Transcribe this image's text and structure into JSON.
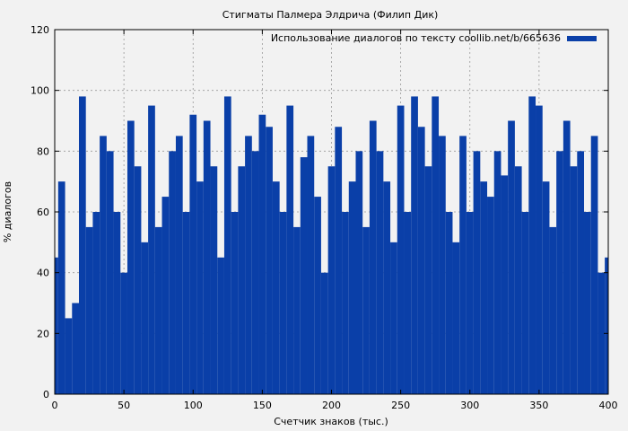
{
  "chart_data": {
    "type": "bar",
    "title": "Стигматы Палмера Элдрича (Филип Дик)",
    "xlabel": "Счетчик знаков (тыс.)",
    "ylabel": "% диалогов",
    "xlim": [
      0,
      400
    ],
    "ylim": [
      0,
      120
    ],
    "xticks": [
      "0",
      "50",
      "100",
      "150",
      "200",
      "250",
      "300",
      "350",
      "400"
    ],
    "yticks": [
      "0",
      "20",
      "40",
      "60",
      "80",
      "100",
      "120"
    ],
    "grid": true,
    "legend_position": "top-right",
    "series": [
      {
        "name": "Использование диалогов по тексту coollib.net/b/665636",
        "color": "#0a3fa8",
        "x": [
          0,
          5,
          10,
          15,
          20,
          25,
          30,
          35,
          40,
          45,
          50,
          55,
          60,
          65,
          70,
          75,
          80,
          85,
          90,
          95,
          100,
          105,
          110,
          115,
          120,
          125,
          130,
          135,
          140,
          145,
          150,
          155,
          160,
          165,
          170,
          175,
          180,
          185,
          190,
          195,
          200,
          205,
          210,
          215,
          220,
          225,
          230,
          235,
          240,
          245,
          250,
          255,
          260,
          265,
          270,
          275,
          280,
          285,
          290,
          295,
          300,
          305,
          310,
          315,
          320,
          325,
          330,
          335,
          340,
          345,
          350,
          355,
          360,
          365,
          370,
          375,
          380,
          385,
          390,
          395,
          400
        ],
        "values": [
          45,
          70,
          25,
          30,
          98,
          55,
          60,
          85,
          80,
          60,
          40,
          90,
          75,
          50,
          95,
          55,
          65,
          80,
          85,
          60,
          92,
          70,
          90,
          75,
          45,
          98,
          60,
          75,
          85,
          80,
          92,
          88,
          70,
          60,
          95,
          55,
          78,
          85,
          65,
          40,
          75,
          88,
          60,
          70,
          80,
          55,
          90,
          80,
          70,
          50,
          95,
          60,
          98,
          88,
          75,
          98,
          85,
          60,
          50,
          85,
          60,
          80,
          70,
          65,
          80,
          72,
          90,
          75,
          60,
          98,
          95,
          70,
          55,
          80,
          90,
          75,
          80,
          60,
          85,
          40,
          45
        ]
      }
    ]
  }
}
